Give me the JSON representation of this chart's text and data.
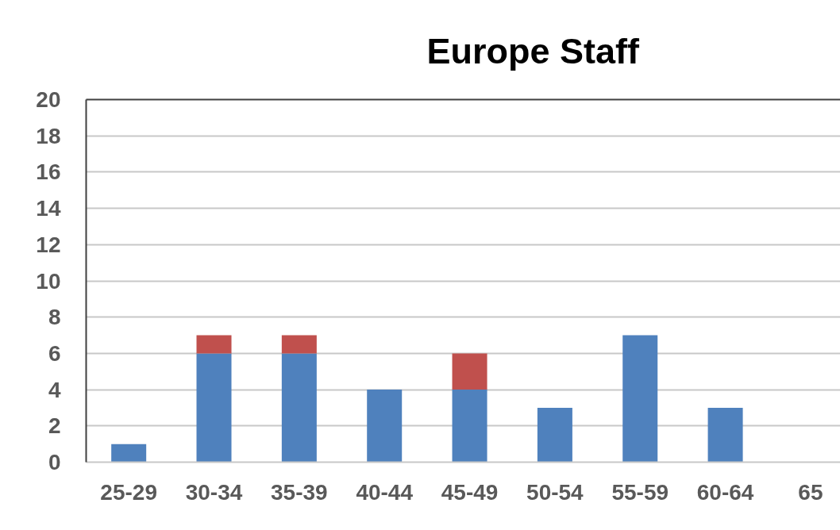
{
  "chart_data": {
    "type": "bar",
    "title": "Europe Staff",
    "stacked": true,
    "categories": [
      "25-29",
      "30-34",
      "35-39",
      "40-44",
      "45-49",
      "50-54",
      "55-59",
      "60-64",
      "65"
    ],
    "series": [
      {
        "color": "#4f81bd",
        "values": [
          1,
          6,
          6,
          4,
          4,
          3,
          7,
          3,
          null
        ]
      },
      {
        "color": "#c0504d",
        "values": [
          0,
          1,
          1,
          0,
          2,
          0,
          0,
          0,
          null
        ]
      }
    ],
    "ylim": [
      0,
      20
    ],
    "yticks": [
      0,
      2,
      4,
      6,
      8,
      10,
      12,
      14,
      16,
      18,
      20
    ],
    "grid": "y"
  }
}
